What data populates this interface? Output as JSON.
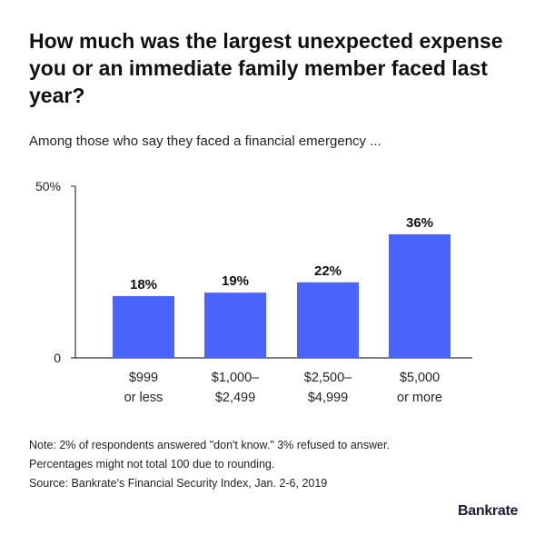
{
  "title": "How much was the largest unexpected expense you or an immediate family member faced last year?",
  "subtitle": "Among those who say they faced a financial emergency ...",
  "notes": [
    "Note: 2% of respondents answered \"don't know.\" 3% refused to answer.",
    "Percentages might not total 100 due to rounding.",
    "Source: Bankrate's Financial Security Index, Jan. 2-6, 2019"
  ],
  "logo": "Bankrate",
  "chart_data": {
    "type": "bar",
    "categories": [
      [
        "$999",
        "or less"
      ],
      [
        "$1,000–",
        "$2,499"
      ],
      [
        "$2,500–",
        "$4,999"
      ],
      [
        "$5,000",
        "or more"
      ]
    ],
    "values": [
      18,
      19,
      22,
      36
    ],
    "data_labels": [
      "18%",
      "19%",
      "22%",
      "36%"
    ],
    "ylim": [
      0,
      50
    ],
    "y_ticks": [
      {
        "value": 0,
        "label": "0"
      },
      {
        "value": 50,
        "label": "50%"
      }
    ],
    "grid": false,
    "bar_color": "#4a63fb",
    "xlabel": "",
    "ylabel": ""
  }
}
